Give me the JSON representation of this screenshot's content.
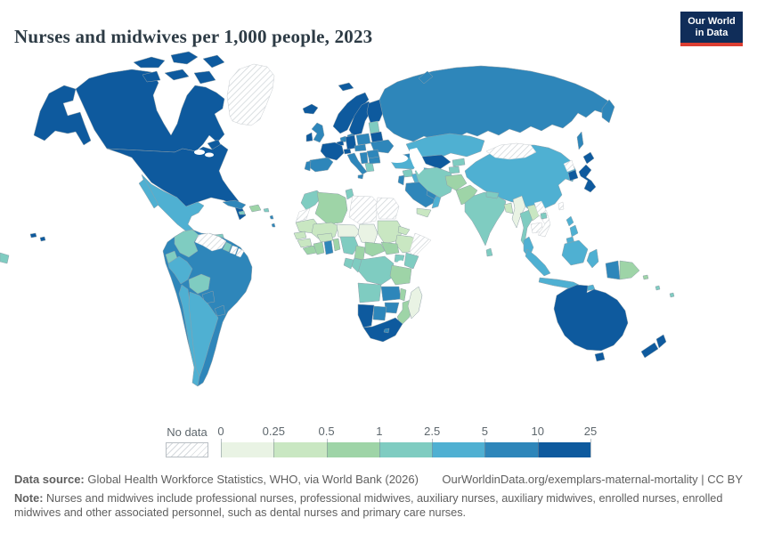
{
  "header": {
    "title": "Nurses and midwives per 1,000 people, 2023"
  },
  "logo": {
    "line1": "Our World",
    "line2": "in Data",
    "bg": "#102d59",
    "accent": "#dc3e32"
  },
  "legend": {
    "no_data_label": "No data",
    "ticks": [
      "0",
      "0.25",
      "0.5",
      "1",
      "2.5",
      "5",
      "10",
      "25"
    ],
    "colors": [
      "#e9f3e4",
      "#c9e7c2",
      "#9ed4a7",
      "#7fccc1",
      "#4fb0d2",
      "#2e86ba",
      "#0e5a9e"
    ]
  },
  "footer": {
    "source_label": "Data source:",
    "source_text": " Global Health Workforce Statistics, WHO, via World Bank (2026)",
    "link_text": "OurWorldinData.org/exemplars-maternal-mortality | CC BY",
    "note_label": "Note:",
    "note_text": " Nurses and midwives include professional nurses, professional midwives, auxiliary nurses, auxiliary midwives, enrolled nurses, enrolled midwives and other associated personnel, such as dental nurses and primary care nurses."
  },
  "chart_data": {
    "type": "choropleth",
    "title": "Nurses and midwives per 1,000 people, 2023",
    "unit": "nurses and midwives per 1,000 people",
    "year": "2023",
    "legend_bin_edges": [
      0,
      0.25,
      0.5,
      1,
      2.5,
      5,
      10,
      25
    ],
    "no_data_label": "No data",
    "regions": {
      "alaska": 6,
      "canada": 6,
      "arctic-islands": 6,
      "greenland": "nodata",
      "newfoundland": 6,
      "usa": 6,
      "iceland": 6,
      "hawaii": 6,
      "mexico": 4,
      "baja-california": 4,
      "guatemala": 2,
      "honduras": 3,
      "nicaragua": 3,
      "costa-rica": 3,
      "panama": 3,
      "cuba": 5,
      "hispaniola": 2,
      "jamaica": 3,
      "puerto-rico": 3,
      "lesser-antilles": 5,
      "colombia": 3,
      "venezuela": "nodata",
      "guyana": 3,
      "suriname": "nodata",
      "french-guiana": "nodata",
      "ecuador": 3,
      "peru": 4,
      "brazil": 5,
      "bolivia": 3,
      "paraguay": 5,
      "uruguay": 5,
      "chile": 4,
      "argentina": 4,
      "norway": 6,
      "sweden": 6,
      "finland": 6,
      "svalbard": 6,
      "denmark": 5,
      "uk": 5,
      "ireland": 6,
      "netherlands": 5,
      "belgium": 6,
      "germany": 6,
      "france": 6,
      "spain": 5,
      "portugal": 5,
      "switzerland": 6,
      "italy": 5,
      "sicily": 5,
      "austria-czechia": 5,
      "poland": 5,
      "baltics": 3,
      "belarus": 6,
      "ukraine": 5,
      "romania": 5,
      "balkans": 5,
      "greece": 3,
      "bulgaria": 5,
      "russia": 5,
      "kamchatka": 5,
      "sakhalin": 5,
      "novaya-zemlya": 5,
      "kazakhstan": 4,
      "uzbekistan": 6,
      "turkmenistan": 4,
      "kyrgyzstan": 3,
      "tajikistan": 3,
      "caucasus": 5,
      "turkey": 4,
      "syria": 3,
      "iraq": 4,
      "israel-jordan": 5,
      "saudi-arabia": 5,
      "yemen": 1,
      "oman": 4,
      "gulf-states": 5,
      "iran": 3,
      "afghanistan": 2,
      "pakistan": 2,
      "india": 3,
      "nepal": 3,
      "bangladesh": 1,
      "sri-lanka": 3,
      "myanmar": 0,
      "thailand": 3,
      "laos": 1,
      "cambodia": "nodata",
      "vietnam": "nodata",
      "china": 4,
      "mongolia": "nodata",
      "north-korea": "nodata",
      "south-korea": 6,
      "japan": 6,
      "taiwan": "nodata",
      "hainan": 3,
      "philippines": 4,
      "malay-peninsula": 4,
      "sumatra": 4,
      "borneo": 4,
      "java": 4,
      "sulawesi": 4,
      "timor": 4,
      "indonesian-papua": 5,
      "papua-new-guinea": 2,
      "australia": 6,
      "tasmania": 6,
      "new-zealand": 6,
      "fiji": 3,
      "vanuatu": 3,
      "solomon-islands": 2,
      "pacific-islands": 3,
      "morocco": 3,
      "western-sahara": "nodata",
      "algeria": 2,
      "tunisia": 3,
      "libya": "nodata",
      "egypt": "nodata",
      "mauritania": 1,
      "mali": 1,
      "niger": 0,
      "chad": 0,
      "sudan": 1,
      "eritrea": 1,
      "ethiopia": 1,
      "somalia": "nodata",
      "senegal": 1,
      "guinea": 1,
      "sierra-leone-liberia": 2,
      "ivory-coast": 2,
      "ghana": 5,
      "togo-benin": 2,
      "burkina-faso": 1,
      "nigeria": 3,
      "cameroon": 2,
      "central-african-republic": 2,
      "south-sudan": 2,
      "uganda": 3,
      "kenya": 3,
      "drc": 3,
      "congo": 3,
      "gabon": 3,
      "tanzania": 2,
      "angola": 3,
      "zambia": 5,
      "malawi": 2,
      "mozambique": 2,
      "zimbabwe": 5,
      "botswana": 5,
      "namibia": 6,
      "south-africa": 6,
      "lesotho": 5,
      "madagascar": 0
    }
  }
}
